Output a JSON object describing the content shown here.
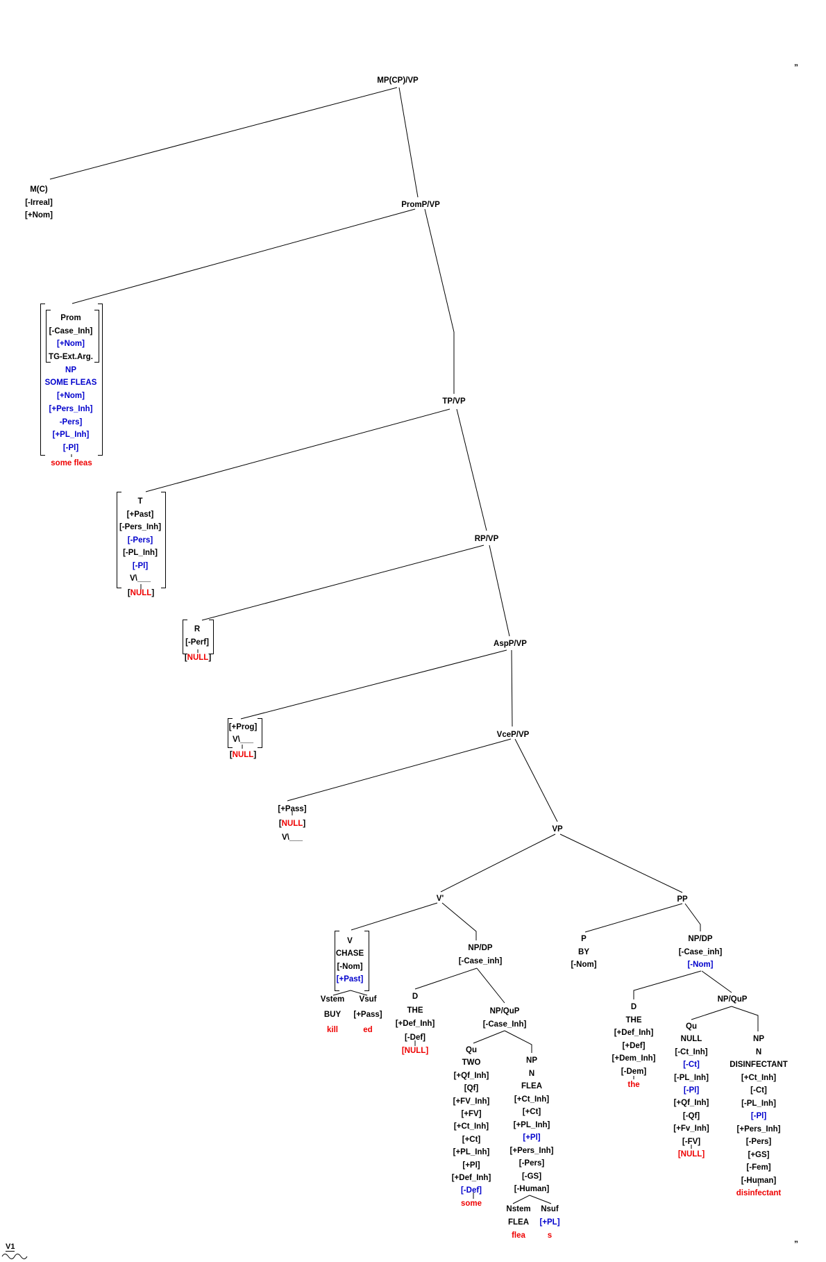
{
  "colors": {
    "text": "#000000",
    "checked_feature_blue": "#0000CC",
    "phonology_red": "#EE0000",
    "background": "#FFFFFF"
  },
  "tree": {
    "root": {
      "label": "MP(CP)/VP"
    },
    "mc": {
      "lines": [
        {
          "t": "M(C)",
          "c": "k"
        },
        {
          "t": "[-Irreal]",
          "c": "k"
        },
        {
          "t": "[+Nom]",
          "c": "k"
        }
      ]
    },
    "promp": {
      "label": "PromP/VP"
    },
    "prom": {
      "lines": [
        {
          "t": "Prom",
          "c": "k"
        },
        {
          "t": "[-Case_Inh]",
          "c": "k"
        },
        {
          "t": "[+Nom]",
          "c": "b"
        },
        {
          "t": "TG-Ext.Arg.",
          "c": "k"
        },
        {
          "t": "NP",
          "c": "b"
        },
        {
          "t": "SOME FLEAS",
          "c": "b"
        },
        {
          "t": "[+Nom]",
          "c": "b"
        },
        {
          "t": "[+Pers_Inh]",
          "c": "b"
        },
        {
          "t": "-Pers]",
          "c": "b"
        },
        {
          "t": "[+PL_Inh]",
          "c": "b"
        },
        {
          "t": "[-Pl]",
          "c": "b"
        }
      ],
      "gloss": "some fleas"
    },
    "tp": {
      "label": "TP/VP"
    },
    "t_block": {
      "lines": [
        {
          "t": "T",
          "c": "k"
        },
        {
          "t": "[+Past]",
          "c": "k"
        },
        {
          "t": "[-Pers_Inh]",
          "c": "k"
        },
        {
          "t": "[-Pers]",
          "c": "b"
        },
        {
          "t": "[-PL_Inh]",
          "c": "k"
        },
        {
          "t": "[-Pl]",
          "c": "b"
        },
        {
          "t": "V\\___",
          "c": "k"
        }
      ],
      "null": {
        "parts": [
          {
            "t": "[",
            "c": "k"
          },
          {
            "t": "NULL",
            "c": "r"
          },
          {
            "t": "]",
            "c": "k"
          }
        ]
      }
    },
    "rp": {
      "label": "RP/VP"
    },
    "r_block": {
      "lines": [
        {
          "t": "R",
          "c": "k"
        },
        {
          "t": "[-Perf]",
          "c": "k"
        }
      ],
      "null": {
        "parts": [
          {
            "t": "[",
            "c": "k"
          },
          {
            "t": "NULL",
            "c": "r"
          },
          {
            "t": "]",
            "c": "k"
          }
        ]
      }
    },
    "aspp": {
      "label": "AspP/VP"
    },
    "prog_block": {
      "lines": [
        {
          "t": "[+Prog]",
          "c": "k"
        },
        {
          "t": "V\\___",
          "c": "k"
        }
      ],
      "null": {
        "parts": [
          {
            "t": "[",
            "c": "k"
          },
          {
            "t": "NULL",
            "c": "r"
          },
          {
            "t": "]",
            "c": "k"
          }
        ]
      }
    },
    "vcep": {
      "label": "VceP/VP"
    },
    "pass_block": {
      "lines": [
        {
          "t": "[+Pass]",
          "c": "k"
        },
        {
          "parts": [
            {
              "t": "[",
              "c": "k"
            },
            {
              "t": "NULL",
              "c": "r"
            },
            {
              "t": "]",
              "c": "k"
            }
          ]
        },
        {
          "t": "V\\___",
          "c": "k"
        }
      ]
    },
    "vp": {
      "label": "VP"
    },
    "vprime": {
      "label": "V'"
    },
    "v_block": {
      "lines": [
        {
          "t": "V",
          "c": "k"
        },
        {
          "t": "CHASE",
          "c": "k"
        },
        {
          "t": "[-Nom]",
          "c": "k"
        },
        {
          "t": "[+Past]",
          "c": "b"
        }
      ]
    },
    "vstem": {
      "lines": [
        {
          "t": "Vstem",
          "c": "k"
        },
        {
          "t": "BUY",
          "c": "k"
        },
        {
          "t": "kill",
          "c": "r"
        }
      ]
    },
    "vsuf": {
      "lines": [
        {
          "t": "Vsuf",
          "c": "k"
        },
        {
          "t": "[+Pass]",
          "c": "k"
        },
        {
          "t": "ed",
          "c": "r"
        }
      ]
    },
    "npdp_l": {
      "lines": [
        {
          "t": "NP/DP",
          "c": "k"
        },
        {
          "t": "[-Case_inh]",
          "c": "k"
        }
      ]
    },
    "d_l": {
      "lines": [
        {
          "t": "D",
          "c": "k"
        },
        {
          "t": "THE",
          "c": "k"
        },
        {
          "t": "[+Def_Inh]",
          "c": "k"
        },
        {
          "t": "[-Def]",
          "c": "k"
        },
        {
          "t": "[NULL]",
          "c": "r"
        }
      ]
    },
    "npqup_l": {
      "lines": [
        {
          "t": "NP/QuP",
          "c": "k"
        },
        {
          "t": "[-Case_Inh]",
          "c": "k"
        }
      ]
    },
    "qu_two": {
      "lines": [
        {
          "t": "Qu",
          "c": "k"
        },
        {
          "t": "TWO",
          "c": "k"
        },
        {
          "t": "[+Qf_Inh]",
          "c": "k"
        },
        {
          "t": "[Qf]",
          "c": "k"
        },
        {
          "t": "[+FV_Inh]",
          "c": "k"
        },
        {
          "t": "[+FV]",
          "c": "k"
        },
        {
          "t": "[+Ct_Inh]",
          "c": "k"
        },
        {
          "t": "[+Ct]",
          "c": "k"
        },
        {
          "t": "[+PL_Inh]",
          "c": "k"
        },
        {
          "t": "[+Pl]",
          "c": "k"
        },
        {
          "t": "[+Def_Inh]",
          "c": "k"
        },
        {
          "t": "[-Def]",
          "c": "b"
        },
        {
          "t": "some",
          "c": "r"
        }
      ]
    },
    "np_flea": {
      "lines": [
        {
          "t": "NP",
          "c": "k"
        },
        {
          "t": "N",
          "c": "k"
        },
        {
          "t": "FLEA",
          "c": "k"
        },
        {
          "t": "[+Ct_Inh]",
          "c": "k"
        },
        {
          "t": "[+Ct]",
          "c": "k"
        },
        {
          "t": "[+PL_Inh]",
          "c": "k"
        },
        {
          "t": "[+Pl]",
          "c": "b"
        },
        {
          "t": "[+Pers_Inh]",
          "c": "k"
        },
        {
          "t": "[-Pers]",
          "c": "k"
        },
        {
          "t": "[-GS]",
          "c": "k"
        },
        {
          "t": "[-Human]",
          "c": "k"
        }
      ]
    },
    "nstem": {
      "lines": [
        {
          "t": "Nstem",
          "c": "k"
        },
        {
          "t": "FLEA",
          "c": "k"
        },
        {
          "t": "flea",
          "c": "r"
        }
      ]
    },
    "nsuf": {
      "lines": [
        {
          "t": "Nsuf",
          "c": "k"
        },
        {
          "t": "[+PL]",
          "c": "b"
        },
        {
          "t": "s",
          "c": "r"
        }
      ]
    },
    "pp": {
      "label": "PP"
    },
    "p": {
      "lines": [
        {
          "t": "P",
          "c": "k"
        },
        {
          "t": "BY",
          "c": "k"
        },
        {
          "t": "[-Nom]",
          "c": "k"
        }
      ]
    },
    "npdp_r": {
      "lines": [
        {
          "t": "NP/DP",
          "c": "k"
        },
        {
          "t": "[-Case_inh]",
          "c": "k"
        },
        {
          "t": "[-Nom]",
          "c": "b"
        }
      ]
    },
    "d_r": {
      "lines": [
        {
          "t": "D",
          "c": "k"
        },
        {
          "t": "THE",
          "c": "k"
        },
        {
          "t": "[+Def_Inh]",
          "c": "k"
        },
        {
          "t": "[+Def]",
          "c": "k"
        },
        {
          "t": "[+Dem_Inh]",
          "c": "k"
        },
        {
          "t": "[-Dem]",
          "c": "k"
        },
        {
          "t": "the",
          "c": "r"
        }
      ]
    },
    "npqup_r": {
      "label": "NP/QuP"
    },
    "qu_null": {
      "lines": [
        {
          "t": "Qu",
          "c": "k"
        },
        {
          "t": "NULL",
          "c": "k"
        },
        {
          "t": "[-Ct_Inh]",
          "c": "k"
        },
        {
          "t": "[-Ct]",
          "c": "b"
        },
        {
          "t": "[-PL_Inh]",
          "c": "k"
        },
        {
          "t": "[-Pl]",
          "c": "b"
        },
        {
          "t": "[+Qf_Inh]",
          "c": "k"
        },
        {
          "t": "[-Qf]",
          "c": "k"
        },
        {
          "t": "[+Fv_Inh]",
          "c": "k"
        },
        {
          "t": "[-FV]",
          "c": "k"
        },
        {
          "t": "[NULL]",
          "c": "r"
        }
      ]
    },
    "np_dis": {
      "lines": [
        {
          "t": "NP",
          "c": "k"
        },
        {
          "t": "N",
          "c": "k"
        },
        {
          "t": "DISINFECTANT",
          "c": "k"
        },
        {
          "t": "[+Ct_Inh]",
          "c": "k"
        },
        {
          "t": "[-Ct]",
          "c": "k"
        },
        {
          "t": "[-PL_Inh]",
          "c": "k"
        },
        {
          "t": "[-Pl]",
          "c": "b"
        },
        {
          "t": "[+Pers_Inh]",
          "c": "k"
        },
        {
          "t": "[-Pers]",
          "c": "k"
        },
        {
          "t": "[+GS]",
          "c": "k"
        },
        {
          "t": "[-Fem]",
          "c": "k"
        },
        {
          "t": "[-Human]",
          "c": "k"
        },
        {
          "t": "disinfectant",
          "c": "r"
        }
      ]
    }
  },
  "footer": {
    "label": "V1"
  },
  "marks": {
    "top_right": "”",
    "bottom_right": "”"
  }
}
